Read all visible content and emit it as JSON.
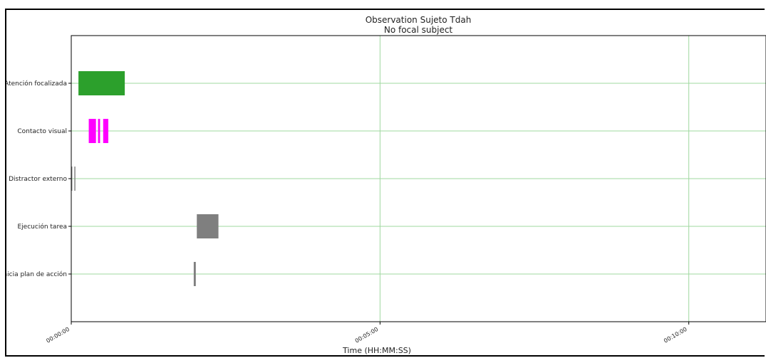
{
  "chart_data": {
    "type": "timeline",
    "title": "Observation Sujeto Tdah",
    "subtitle": "No focal subject",
    "xlabel": "Time (HH:MM:SS)",
    "ylabel": "",
    "x_unit": "seconds",
    "xlim": [
      0,
      675
    ],
    "x_ticks": [
      {
        "value": 0,
        "label": "00:00:00"
      },
      {
        "value": 300,
        "label": "00:05:00"
      },
      {
        "value": 600,
        "label": "00:10:00"
      }
    ],
    "grid": true,
    "categories": [
      "Atención focalizada",
      "Contacto visual",
      "Distractor externo",
      "Ejecución tarea",
      "Inicia plan de acción"
    ],
    "events": [
      {
        "category": "Atención focalizada",
        "start": 7,
        "end": 52,
        "color": "#2ca02c"
      },
      {
        "category": "Contacto visual",
        "start": 17,
        "end": 24,
        "color": "#ff00ff"
      },
      {
        "category": "Contacto visual",
        "start": 26,
        "end": 28,
        "color": "#ff00ff"
      },
      {
        "category": "Contacto visual",
        "start": 31,
        "end": 36,
        "color": "#ff00ff"
      },
      {
        "category": "Distractor externo",
        "start": 0,
        "end": 1,
        "color": "#7f7f7f"
      },
      {
        "category": "Distractor externo",
        "start": 3,
        "end": 4,
        "color": "#7f7f7f"
      },
      {
        "category": "Ejecución tarea",
        "start": 122,
        "end": 143,
        "color": "#7f7f7f"
      },
      {
        "category": "Inicia plan de acción",
        "start": 119,
        "end": 121,
        "color": "#7f7f7f"
      }
    ]
  }
}
